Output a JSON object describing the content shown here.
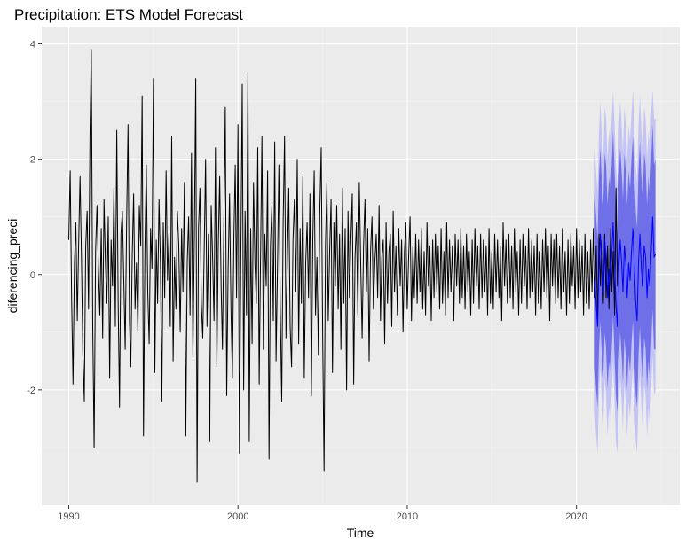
{
  "chart_data": {
    "type": "line",
    "title": "Precipitation: ETS Model Forecast",
    "xlabel": "Time",
    "ylabel": "diferencing_preci",
    "xlim": [
      1988.4,
      2026.1
    ],
    "ylim": [
      -4.0,
      4.3
    ],
    "x_ticks": [
      1990,
      2000,
      2010,
      2020
    ],
    "x_tick_labels": [
      "1990",
      "2000",
      "2010",
      "2020"
    ],
    "y_ticks": [
      -2,
      0,
      2,
      4
    ],
    "y_tick_labels": [
      "-2",
      "0",
      "2",
      "4"
    ],
    "grid": true,
    "series": [
      {
        "style": "black-line",
        "start": 1990.0,
        "step": 0.0833333,
        "values": [
          0.6,
          1.8,
          -0.4,
          -1.9,
          0.2,
          0.9,
          -0.8,
          0.5,
          1.7,
          0.3,
          -1.4,
          -2.2,
          0.5,
          1.1,
          -0.6,
          2.4,
          3.9,
          -0.9,
          -3.0,
          0.4,
          1.2,
          0.1,
          -0.7,
          0.8,
          -1.1,
          1.3,
          0.2,
          -0.5,
          1.0,
          -1.8,
          0.6,
          -0.2,
          1.5,
          -0.9,
          2.5,
          -0.4,
          -2.3,
          0.7,
          1.1,
          -0.1,
          -1.3,
          0.9,
          2.6,
          -0.8,
          -1.6,
          0.3,
          1.4,
          -0.6,
          0.2,
          -1.0,
          1.2,
          0.5,
          3.1,
          -2.8,
          0.4,
          1.9,
          -0.3,
          -1.2,
          0.8,
          0.1,
          3.4,
          -1.7,
          0.6,
          -0.5,
          1.3,
          0.2,
          -2.2,
          0.9,
          -0.4,
          1.8,
          -0.1,
          0.7,
          -0.9,
          2.4,
          -1.5,
          0.3,
          -0.6,
          1.1,
          0.5,
          -1.0,
          0.8,
          -0.3,
          1.6,
          -2.8,
          0.2,
          1.0,
          -0.7,
          2.1,
          -1.4,
          0.6,
          3.4,
          -3.6,
          0.8,
          1.5,
          -0.5,
          -1.1,
          0.4,
          2.0,
          -0.9,
          0.7,
          -2.9,
          1.2,
          0.3,
          -0.8,
          2.2,
          -1.6,
          0.5,
          1.7,
          -0.2,
          -1.3,
          0.9,
          2.9,
          -2.1,
          0.1,
          1.4,
          -0.6,
          -1.8,
          0.6,
          1.9,
          -0.4,
          2.6,
          -3.1,
          0.3,
          3.3,
          -2.0,
          1.1,
          -0.7,
          3.5,
          -2.9,
          0.8,
          -1.2,
          1.6,
          0.2,
          -0.5,
          2.2,
          -1.9,
          0.4,
          2.4,
          -1.3,
          0.7,
          -0.2,
          1.8,
          -3.2,
          0.5,
          1.2,
          -0.8,
          2.3,
          -1.5,
          0.1,
          1.9,
          -0.6,
          -2.2,
          0.9,
          2.4,
          -1.1,
          0.3,
          1.5,
          -0.9,
          -1.6,
          0.6,
          1.3,
          -0.3,
          2.0,
          -1.2,
          0.8,
          -0.5,
          1.7,
          -1.8,
          0.2,
          0.9,
          -0.4,
          1.4,
          -2.1,
          0.6,
          1.8,
          -0.7,
          0.3,
          -1.4,
          1.1,
          2.2,
          -1.0,
          -3.4,
          0.5,
          1.6,
          -0.8,
          0.4,
          1.3,
          -1.7,
          0.9,
          -0.2,
          1.2,
          -0.6,
          0.7,
          -1.3,
          1.5,
          -0.5,
          0.8,
          -2.0,
          1.1,
          -0.4,
          0.6,
          1.4,
          -1.9,
          0.3,
          0.9,
          -0.7,
          1.6,
          0.2,
          -1.1,
          0.5,
          1.3,
          -0.3,
          0.8,
          -1.5,
          0.4,
          1.0,
          -0.6,
          0.2,
          0.7,
          -0.4,
          1.2,
          -0.8,
          0.3,
          0.6,
          -1.2,
          0.9,
          -0.5,
          0.4,
          0.7,
          -0.9,
          1.1,
          -0.3,
          0.5,
          -0.7,
          0.8,
          -0.2,
          0.6,
          -1.0,
          0.4,
          0.9,
          -0.6,
          0.3,
          1.0,
          -0.8,
          0.5,
          -0.4,
          0.7,
          -0.5,
          0.6,
          -0.3,
          0.8,
          -0.6,
          0.4,
          -0.7,
          0.9,
          -0.2,
          0.5,
          -0.8,
          0.6,
          -0.4,
          0.7,
          -0.3,
          0.5,
          -0.6,
          0.8,
          -0.5,
          0.4,
          -0.7,
          0.9,
          -0.4,
          0.6,
          -0.3,
          0.5,
          -0.8,
          0.7,
          -0.2,
          0.6,
          -0.5,
          0.8,
          -0.4,
          0.5,
          -0.6,
          0.7,
          -0.3,
          0.4,
          -0.7,
          0.6,
          -0.5,
          0.8,
          -0.2,
          0.5,
          -0.6,
          0.7,
          -0.4,
          0.6,
          -0.3,
          0.5,
          -0.7,
          0.8,
          -0.5,
          0.4,
          -0.6,
          0.7,
          -0.3,
          0.6,
          -0.4,
          0.5,
          -0.8,
          0.9,
          -0.2,
          0.6,
          -0.5,
          0.7,
          -0.4,
          0.5,
          -0.6,
          0.8,
          -0.3,
          0.4,
          -0.7,
          0.6,
          -0.5,
          0.7,
          -0.2,
          0.5,
          -0.6,
          0.8,
          -0.4,
          0.6,
          -0.3,
          0.5,
          -0.7,
          0.7,
          -0.5,
          0.4,
          -0.6,
          0.6,
          -0.3,
          0.8,
          -0.4,
          0.5,
          -0.8,
          0.7,
          -0.2,
          0.6,
          -0.5,
          0.7,
          -0.4,
          0.5,
          -0.6,
          0.8,
          -0.3,
          0.4,
          -0.7,
          0.6,
          -0.5,
          0.7,
          -0.2,
          0.5,
          -0.6,
          0.8,
          -0.4,
          0.6,
          -0.3,
          0.5,
          -0.7,
          0.7,
          -0.5,
          0.4,
          -0.6,
          0.6,
          -0.3,
          0.8,
          -0.4,
          0.5,
          -0.8,
          0.7,
          -0.2,
          0.6,
          -0.5,
          0.7,
          -0.4,
          0.5,
          -0.6,
          0.8,
          -0.3,
          0.4,
          -0.7,
          1.5,
          -0.2,
          0.1
        ]
      },
      {
        "style": "forecast-line",
        "start": 2021.08,
        "step": 0.0833333,
        "values": [
          -0.1,
          -0.5,
          -0.9,
          0.2,
          0.7,
          0.1,
          -0.3,
          0.6,
          0.3,
          -0.4,
          0.1,
          -0.2,
          0.3,
          0.9,
          0.2,
          -0.5,
          -0.9,
          0.1,
          0.6,
          0.2,
          -0.3,
          0.5,
          0.2,
          -0.4,
          0.2,
          -0.1,
          0.4,
          0.8,
          0.1,
          -0.5,
          -0.8,
          0.2,
          0.7,
          0.1,
          -0.2,
          0.5,
          0.3,
          -0.4,
          0.1,
          -0.2,
          0.4,
          1.0,
          0.3,
          0.35
        ]
      }
    ],
    "forecast_start": 2021.08,
    "forecast_step": 0.0833333,
    "forecast_bands": [
      {
        "level": "80",
        "color": "#6f6fe8",
        "lower": [
          -1.6,
          -2.0,
          -2.3,
          -1.3,
          -0.8,
          -1.4,
          -1.8,
          -1.0,
          -1.3,
          -2.0,
          -1.5,
          -1.8,
          -1.3,
          -0.7,
          -1.4,
          -2.1,
          -2.4,
          -1.5,
          -1.0,
          -1.4,
          -1.9,
          -1.1,
          -1.4,
          -2.0,
          -1.4,
          -1.7,
          -1.2,
          -0.8,
          -1.5,
          -2.1,
          -2.3,
          -1.4,
          -0.9,
          -1.5,
          -1.8,
          -1.1,
          -1.3,
          -2.0,
          -1.5,
          -1.8,
          -1.2,
          -0.6,
          -1.3,
          -1.3
        ],
        "upper": [
          1.4,
          1.0,
          0.6,
          1.7,
          2.2,
          1.6,
          1.2,
          2.1,
          1.9,
          1.2,
          1.7,
          1.4,
          1.9,
          2.5,
          1.8,
          1.1,
          0.7,
          1.7,
          2.2,
          1.8,
          1.3,
          2.1,
          1.8,
          1.2,
          1.8,
          1.5,
          2.0,
          2.4,
          1.7,
          1.1,
          0.8,
          1.8,
          2.3,
          1.7,
          1.4,
          2.1,
          1.9,
          1.2,
          1.7,
          1.4,
          2.0,
          2.6,
          1.9,
          2.0
        ]
      },
      {
        "level": "95",
        "color": "#c4c4f4",
        "lower": [
          -2.4,
          -2.8,
          -3.1,
          -2.1,
          -1.6,
          -2.2,
          -2.6,
          -1.8,
          -2.1,
          -2.8,
          -2.3,
          -2.6,
          -2.1,
          -1.5,
          -2.2,
          -2.9,
          -3.1,
          -2.3,
          -1.8,
          -2.2,
          -2.7,
          -1.9,
          -2.2,
          -2.8,
          -2.2,
          -2.5,
          -2.0,
          -1.6,
          -2.3,
          -2.9,
          -3.1,
          -2.2,
          -1.7,
          -2.3,
          -2.6,
          -1.9,
          -2.1,
          -2.8,
          -2.3,
          -2.6,
          -2.0,
          -1.4,
          -2.1,
          -2.0
        ],
        "upper": [
          2.2,
          1.8,
          1.4,
          2.5,
          3.0,
          2.4,
          2.0,
          2.9,
          2.7,
          2.0,
          2.5,
          2.2,
          2.7,
          3.2,
          2.6,
          1.9,
          1.5,
          2.5,
          3.0,
          2.6,
          2.1,
          2.9,
          2.6,
          2.0,
          2.6,
          2.3,
          2.8,
          3.2,
          2.5,
          1.9,
          1.6,
          2.6,
          3.1,
          2.5,
          2.2,
          2.9,
          2.7,
          2.0,
          2.5,
          2.2,
          2.8,
          3.2,
          2.7,
          2.7
        ]
      }
    ],
    "colors": {
      "panel_background": "#ebebeb",
      "grid_major": "#ffffff",
      "grid_minor": "#f5f5f5",
      "line": "#000000",
      "forecast_line": "#0000ff"
    }
  }
}
